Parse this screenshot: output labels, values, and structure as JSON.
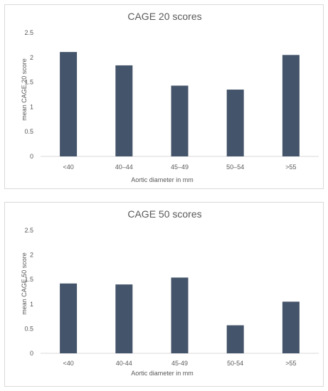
{
  "chart_data": [
    {
      "type": "bar",
      "title": "CAGE 20 scores",
      "xlabel": "Aortic diameter in mm",
      "ylabel": "mean CAGE 20 score",
      "categories": [
        "<40",
        "40–44",
        "45–49",
        "50–54",
        ">55"
      ],
      "values": [
        2.11,
        1.84,
        1.43,
        1.35,
        2.05
      ],
      "ylim": [
        0,
        2.5
      ],
      "yticks": [
        "0",
        "0.5",
        "1",
        "1.5",
        "2",
        "2.5"
      ],
      "grid": false,
      "legend": "none",
      "bar_color": "#44546a"
    },
    {
      "type": "bar",
      "title": "CAGE 50 scores",
      "xlabel": "Aortic diameter in mm",
      "ylabel": "mean CAGE 50 score",
      "categories": [
        "<40",
        "40-44",
        "45-49",
        "50-54",
        ">55"
      ],
      "values": [
        1.42,
        1.4,
        1.54,
        0.57,
        1.05
      ],
      "ylim": [
        0,
        2.5
      ],
      "yticks": [
        "0",
        "0.5",
        "1",
        "1.5",
        "2",
        "2.5"
      ],
      "grid": false,
      "legend": "none",
      "bar_color": "#44546a"
    }
  ]
}
